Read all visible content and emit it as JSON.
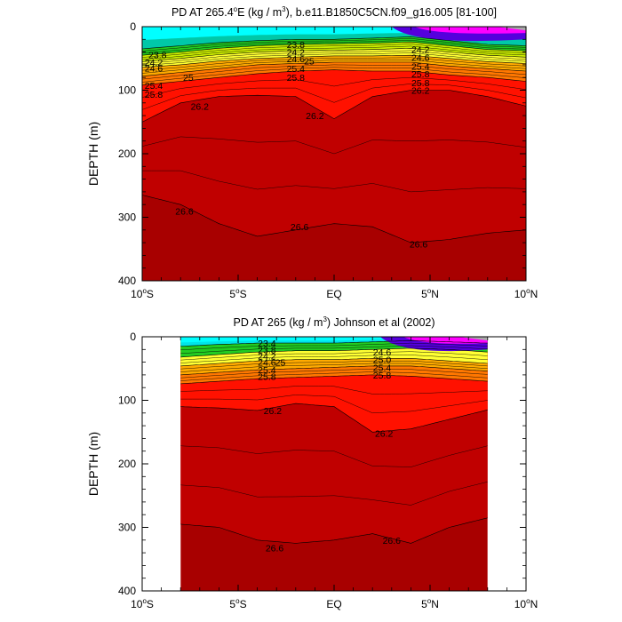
{
  "colors": {
    "levels": [
      "#00FFFF",
      "#00E4E8",
      "#00C8A8",
      "#00C070",
      "#22CC22",
      "#88DD00",
      "#CCEE00",
      "#FFFF33",
      "#FFD700",
      "#FFAA00",
      "#FF7700",
      "#FF4400",
      "#FF1100",
      "#DD0000",
      "#C00000",
      "#A80000"
    ],
    "upper": [
      "#0000CC",
      "#5500DD",
      "#AA00EE",
      "#FF00FF",
      "#888888",
      "#AAAAAA"
    ]
  },
  "chart_data": [
    {
      "type": "contour",
      "title": "PD AT 265.4°E (kg / m³), b.e11.B1850C5CN.f09_g16.005 [81-100]",
      "title_parts": {
        "pre": "PD AT 265.4",
        "deg": "o",
        "mid": "E (kg / m",
        "cube": "3",
        "post": "), b.e11.B1850C5CN.f09_g16.005 [81-100]"
      },
      "ylabel": "DEPTH (m)",
      "xlim": [
        -10,
        10
      ],
      "ylim": [
        0,
        400
      ],
      "y_inverted": true,
      "x_ticks": [
        {
          "v": -10,
          "t": "10",
          "d": "o",
          "s": "S"
        },
        {
          "v": -5,
          "t": "5",
          "d": "o",
          "s": "S"
        },
        {
          "v": 0,
          "t": "EQ",
          "d": "",
          "s": ""
        },
        {
          "v": 5,
          "t": "5",
          "d": "o",
          "s": "N"
        },
        {
          "v": 10,
          "t": "10",
          "d": "o",
          "s": "N"
        }
      ],
      "y_ticks": [
        {
          "v": 0,
          "t": "0"
        },
        {
          "v": 100,
          "t": "100"
        },
        {
          "v": 200,
          "t": "200"
        },
        {
          "v": 300,
          "t": "300"
        },
        {
          "v": 400,
          "t": "400"
        }
      ],
      "data_xrange": [
        -10,
        10
      ],
      "x": [
        -10,
        -8,
        -6,
        -4,
        -2,
        0,
        2,
        4,
        6,
        8,
        10
      ],
      "levels": [
        22.6,
        22.8,
        23.0,
        23.2,
        23.4,
        23.6,
        23.8,
        24.0,
        24.2,
        24.4,
        24.6,
        24.8,
        25.0,
        25.2,
        25.4,
        25.6,
        25.8,
        26.0,
        26.2,
        26.4,
        26.6
      ],
      "isopycnals": [
        {
          "v": 23.8,
          "depth": [
            35,
            30,
            25,
            22,
            20,
            20,
            18,
            16,
            22,
            28,
            30
          ]
        },
        {
          "v": 24.2,
          "depth": [
            45,
            40,
            34,
            30,
            28,
            27,
            26,
            24,
            30,
            36,
            38
          ]
        },
        {
          "v": 24.6,
          "depth": [
            55,
            50,
            44,
            40,
            38,
            37,
            36,
            34,
            40,
            45,
            48
          ]
        },
        {
          "v": 25.0,
          "depth": [
            64,
            60,
            54,
            50,
            48,
            46,
            46,
            45,
            50,
            55,
            58
          ]
        },
        {
          "v": 25.4,
          "depth": [
            78,
            72,
            66,
            60,
            58,
            56,
            56,
            56,
            62,
            66,
            70
          ]
        },
        {
          "v": 25.8,
          "depth": [
            92,
            86,
            80,
            74,
            70,
            68,
            70,
            70,
            76,
            80,
            86
          ]
        },
        {
          "v": 26.2,
          "depth": [
            150,
            120,
            110,
            108,
            110,
            145,
            110,
            100,
            100,
            110,
            125
          ]
        },
        {
          "v": 26.6,
          "depth": [
            265,
            280,
            310,
            330,
            320,
            310,
            315,
            340,
            335,
            325,
            320
          ]
        }
      ],
      "contour_labels": [
        {
          "x": -9.2,
          "d": 44,
          "t": "23.8"
        },
        {
          "x": -9.4,
          "d": 56,
          "t": "24.2"
        },
        {
          "x": -9.4,
          "d": 65,
          "t": "24.6"
        },
        {
          "x": -7.6,
          "d": 80,
          "t": "25"
        },
        {
          "x": -9.4,
          "d": 92,
          "t": "25.4"
        },
        {
          "x": -9.4,
          "d": 106,
          "t": "25.8"
        },
        {
          "x": -7.0,
          "d": 125,
          "t": "26.2"
        },
        {
          "x": -2.0,
          "d": 28,
          "t": "23.8"
        },
        {
          "x": -2.0,
          "d": 40,
          "t": "24.2"
        },
        {
          "x": -2.0,
          "d": 50,
          "t": "24.6"
        },
        {
          "x": -1.3,
          "d": 54,
          "t": "25"
        },
        {
          "x": -2.0,
          "d": 66,
          "t": "25.4"
        },
        {
          "x": -2.0,
          "d": 80,
          "t": "25.8"
        },
        {
          "x": -1.0,
          "d": 140,
          "t": "26.2"
        },
        {
          "x": 4.5,
          "d": 36,
          "t": "24.2"
        },
        {
          "x": 4.5,
          "d": 48,
          "t": "24.6"
        },
        {
          "x": 4.5,
          "d": 62,
          "t": "25.4"
        },
        {
          "x": 4.5,
          "d": 74,
          "t": "25.8"
        },
        {
          "x": 4.5,
          "d": 88,
          "t": "25.8"
        },
        {
          "x": 4.5,
          "d": 100,
          "t": "26.2"
        },
        {
          "x": -7.8,
          "d": 290,
          "t": "26.6"
        },
        {
          "x": -1.8,
          "d": 315,
          "t": "26.6"
        },
        {
          "x": 4.4,
          "d": 342,
          "t": "26.6"
        }
      ]
    },
    {
      "type": "contour",
      "title": "PD AT 265 (kg / m³) Johnson et al (2002)",
      "title_parts": {
        "pre": "PD AT 265 (kg / m",
        "deg": "",
        "mid": "",
        "cube": "3",
        "post": ") Johnson et al (2002)"
      },
      "ylabel": "DEPTH (m)",
      "xlim": [
        -10,
        10
      ],
      "ylim": [
        0,
        400
      ],
      "y_inverted": true,
      "x_ticks": [
        {
          "v": -10,
          "t": "10",
          "d": "o",
          "s": "S"
        },
        {
          "v": -5,
          "t": "5",
          "d": "o",
          "s": "S"
        },
        {
          "v": 0,
          "t": "EQ",
          "d": "",
          "s": ""
        },
        {
          "v": 5,
          "t": "5",
          "d": "o",
          "s": "N"
        },
        {
          "v": 10,
          "t": "10",
          "d": "o",
          "s": "N"
        }
      ],
      "y_ticks": [
        {
          "v": 0,
          "t": "0"
        },
        {
          "v": 100,
          "t": "100"
        },
        {
          "v": 200,
          "t": "200"
        },
        {
          "v": 300,
          "t": "300"
        },
        {
          "v": 400,
          "t": "400"
        }
      ],
      "data_xrange": [
        -8,
        8
      ],
      "x": [
        -8,
        -6,
        -4,
        -2,
        0,
        2,
        4,
        6,
        8
      ],
      "levels": [
        22.6,
        22.8,
        23.0,
        23.2,
        23.4,
        23.6,
        23.8,
        24.0,
        24.2,
        24.4,
        24.6,
        24.8,
        25.0,
        25.2,
        25.4,
        25.6,
        25.8,
        26.0,
        26.2,
        26.4,
        26.6
      ],
      "isopycnals": [
        {
          "v": 23.4,
          "depth": [
            15,
            12,
            10,
            10,
            10,
            8,
            6,
            8,
            10
          ]
        },
        {
          "v": 24.2,
          "depth": [
            32,
            28,
            24,
            22,
            22,
            20,
            18,
            20,
            24
          ]
        },
        {
          "v": 25.0,
          "depth": [
            46,
            42,
            38,
            36,
            36,
            34,
            34,
            38,
            42
          ]
        },
        {
          "v": 25.4,
          "depth": [
            60,
            56,
            52,
            50,
            48,
            46,
            46,
            50,
            54
          ]
        },
        {
          "v": 25.8,
          "depth": [
            74,
            70,
            66,
            64,
            62,
            60,
            62,
            66,
            70
          ]
        },
        {
          "v": 26.2,
          "depth": [
            110,
            112,
            116,
            105,
            110,
            150,
            145,
            130,
            115
          ]
        },
        {
          "v": 26.6,
          "depth": [
            295,
            300,
            320,
            325,
            320,
            310,
            325,
            300,
            285
          ]
        }
      ],
      "contour_labels": [
        {
          "x": -3.5,
          "d": 10,
          "t": "23.4"
        },
        {
          "x": -3.5,
          "d": 20,
          "t": "23.8"
        },
        {
          "x": -3.5,
          "d": 30,
          "t": "24.2"
        },
        {
          "x": -3.5,
          "d": 40,
          "t": "24.6"
        },
        {
          "x": -2.8,
          "d": 40,
          "t": "25"
        },
        {
          "x": -3.5,
          "d": 52,
          "t": "25.4"
        },
        {
          "x": -3.5,
          "d": 62,
          "t": "25.8"
        },
        {
          "x": 2.5,
          "d": 24,
          "t": "24.6"
        },
        {
          "x": 2.5,
          "d": 36,
          "t": "25.0"
        },
        {
          "x": 2.5,
          "d": 48,
          "t": "25.4"
        },
        {
          "x": 2.5,
          "d": 60,
          "t": "25.8"
        },
        {
          "x": -3.2,
          "d": 116,
          "t": "26.2"
        },
        {
          "x": 2.6,
          "d": 152,
          "t": "26.2"
        },
        {
          "x": -3.1,
          "d": 332,
          "t": "26.6"
        },
        {
          "x": 3.0,
          "d": 320,
          "t": "26.6"
        }
      ]
    }
  ]
}
